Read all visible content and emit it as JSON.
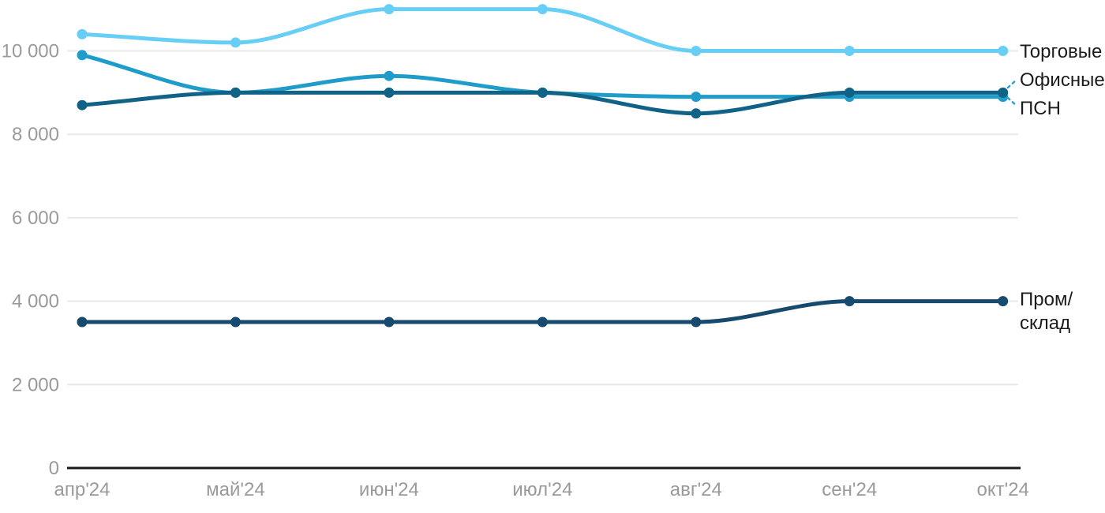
{
  "chart_data": {
    "type": "line",
    "x": [
      "апр'24",
      "май'24",
      "июн'24",
      "июл'24",
      "авг'24",
      "сен'24",
      "окт'24"
    ],
    "series": [
      {
        "name": "Торговые",
        "label": "Торговые",
        "color": "#67CEF5",
        "values": [
          10400,
          10200,
          11000,
          11000,
          10000,
          10000,
          10000
        ]
      },
      {
        "name": "Офисные",
        "label": "Офисные",
        "color": "#1F9CCA",
        "values": [
          9900,
          9000,
          9400,
          9000,
          8900,
          8900,
          8900
        ]
      },
      {
        "name": "ПСН",
        "label": "ПСН",
        "color": "#116287",
        "values": [
          8700,
          9000,
          9000,
          9000,
          8500,
          9000,
          9000
        ]
      },
      {
        "name": "Пром/склад",
        "label": "Пром/\nсклад",
        "color": "#164A6E",
        "values": [
          3500,
          3500,
          3500,
          3500,
          3500,
          4000,
          4000
        ]
      }
    ],
    "y_ticks": [
      0,
      2000,
      4000,
      6000,
      8000,
      10000
    ],
    "y_tick_labels": [
      "0",
      "2 000",
      "4 000",
      "6 000",
      "8 000",
      "10 000"
    ],
    "ylim": [
      0,
      11300
    ],
    "grid": "horizontal",
    "legend_position": "right-of-line-endpoints"
  },
  "colors": {
    "grid": "#e9e9e9",
    "axis": "#1a1a1a",
    "tick_text": "#9a9a9a",
    "label_text": "#1c1c1c",
    "leader_dash": "#2ba2cf"
  }
}
